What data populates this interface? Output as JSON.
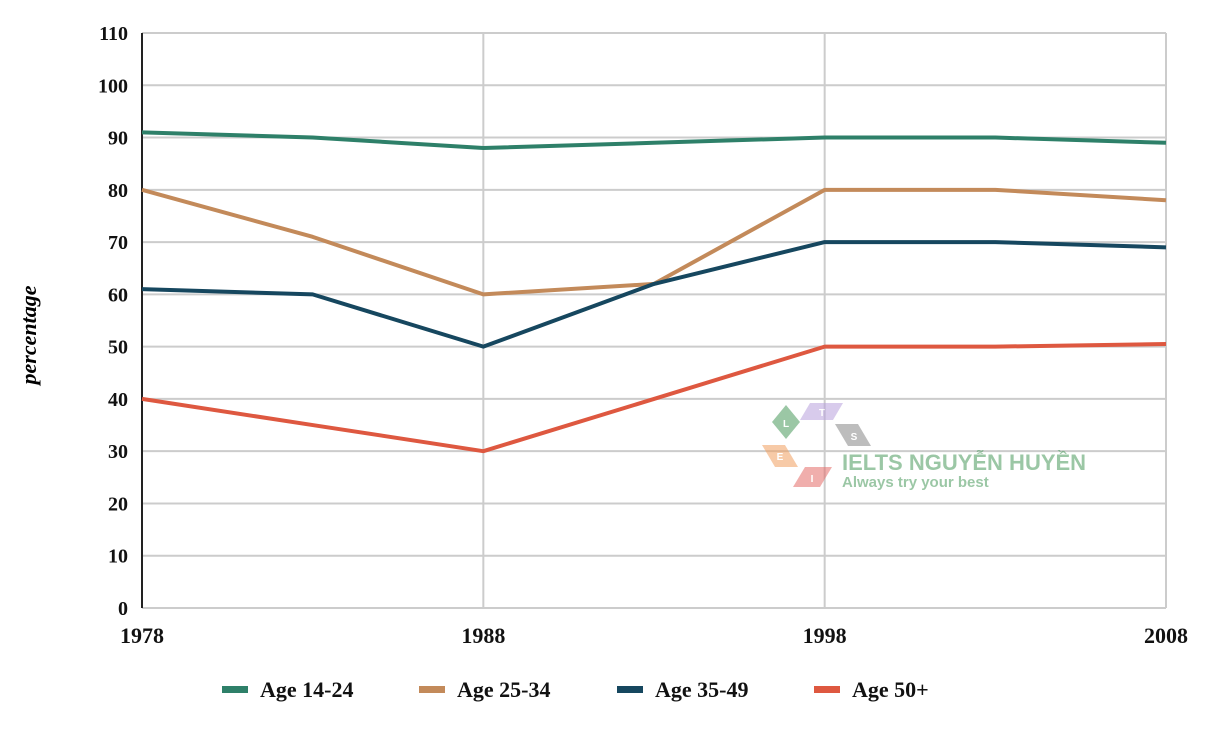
{
  "chart_data": {
    "type": "line",
    "title": "",
    "xlabel": "",
    "ylabel": "percentage",
    "x": [
      1978,
      1983,
      1988,
      1993,
      1998,
      2003,
      2008
    ],
    "xticks": [
      "1978",
      "1988",
      "1998",
      "2008"
    ],
    "xlim": [
      1978,
      2008
    ],
    "ylim": [
      0,
      110
    ],
    "yticks": [
      "0",
      "10",
      "20",
      "30",
      "40",
      "50",
      "60",
      "70",
      "80",
      "90",
      "100",
      "110"
    ],
    "grid": true,
    "legend_position": "bottom",
    "series": [
      {
        "name": "Age 14-24",
        "color": "#2e8069",
        "values": [
          91,
          90,
          88,
          89,
          90,
          90,
          89
        ]
      },
      {
        "name": "Age 25-34",
        "color": "#c38a5a",
        "values": [
          80,
          71,
          60,
          62,
          80,
          80,
          78
        ]
      },
      {
        "name": "Age 35-49",
        "color": "#16475f",
        "values": [
          61,
          60,
          50,
          62,
          70,
          70,
          69
        ]
      },
      {
        "name": "Age 50+",
        "color": "#de5840",
        "values": [
          40,
          35,
          30,
          40,
          50,
          50,
          50.5
        ]
      }
    ]
  },
  "watermark": {
    "brand": "IELTS NGUYỄN HUYỀN",
    "tagline": "Always try your best",
    "letters": [
      "L",
      "T",
      "S",
      "E",
      "I"
    ]
  }
}
